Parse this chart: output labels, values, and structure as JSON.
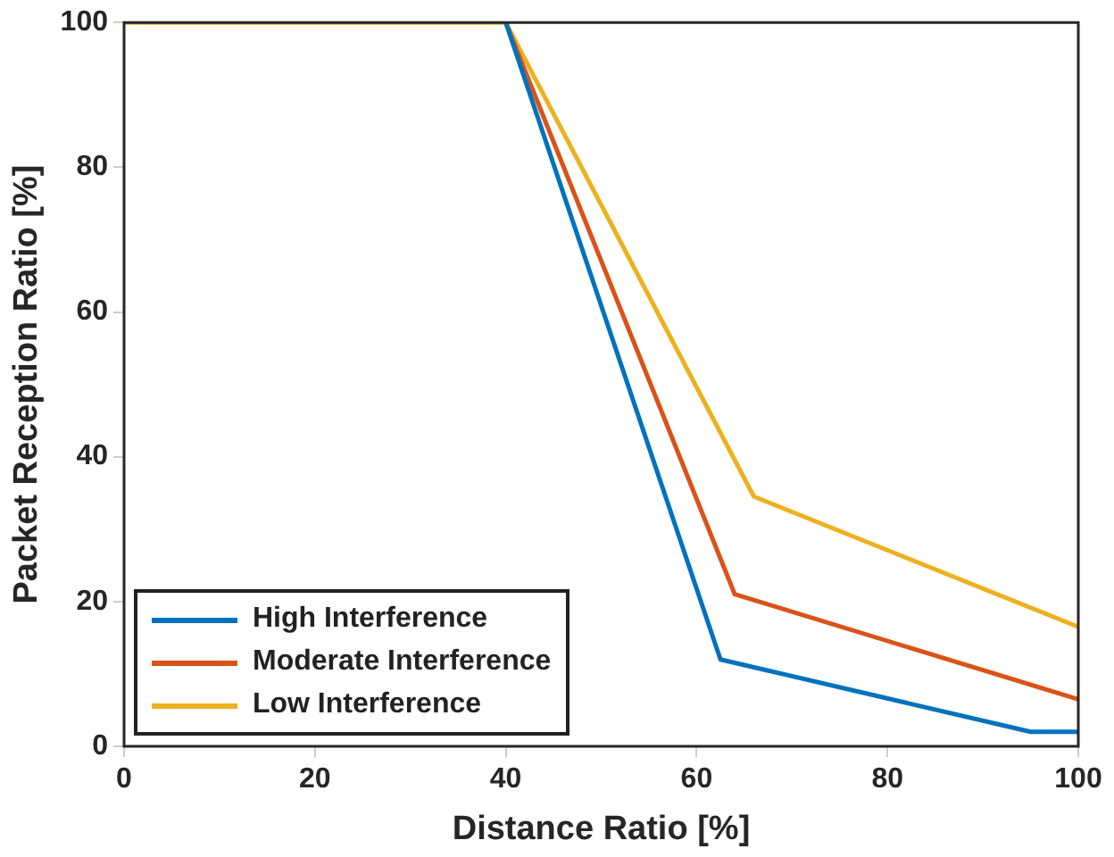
{
  "chart_data": {
    "type": "line",
    "xlabel": "Distance Ratio [%]",
    "ylabel": "Packet Reception Ratio [%]",
    "xlim": [
      0,
      100
    ],
    "xticks": [
      0,
      20,
      40,
      60,
      80,
      100
    ],
    "ylim": [
      0,
      100
    ],
    "yticks": [
      0,
      20,
      40,
      60,
      80,
      100
    ],
    "grid": false,
    "legend": "bottom left",
    "marker": "none",
    "line_style": "solid",
    "series": [
      {
        "name": "High Interference",
        "color": "#0072bd",
        "x": [
          40,
          62.5,
          95,
          100
        ],
        "values": [
          100,
          12,
          2,
          2
        ]
      },
      {
        "name": "Moderate Interference",
        "color": "#d95319",
        "x": [
          40,
          64,
          100
        ],
        "values": [
          100,
          21,
          6.5
        ]
      },
      {
        "name": "Low Interference",
        "color": "#edb120",
        "x": [
          0,
          40,
          66,
          100
        ],
        "values": [
          100,
          100,
          34.5,
          16.5
        ]
      }
    ]
  }
}
